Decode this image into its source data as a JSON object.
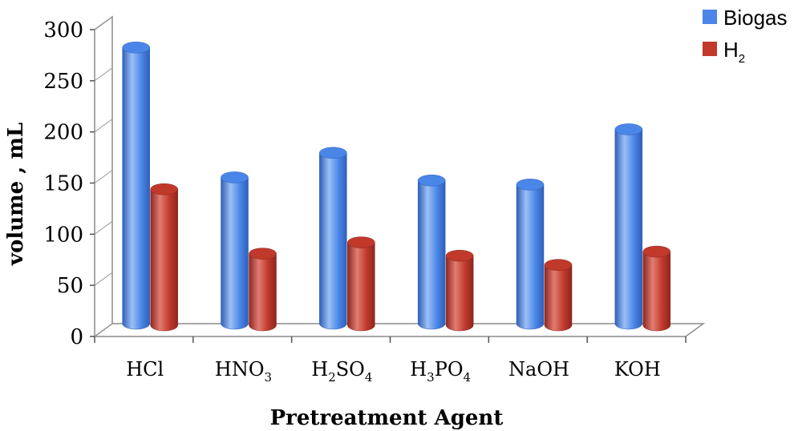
{
  "chart_data": {
    "type": "bar",
    "categories": [
      {
        "base": "HCl",
        "sub": "",
        "parts": [
          {
            "t": "HCl",
            "s": false
          }
        ]
      },
      {
        "base": "HNO3",
        "parts": [
          {
            "t": "HNO",
            "s": false
          },
          {
            "t": "3",
            "s": true
          }
        ]
      },
      {
        "base": "H2SO4",
        "parts": [
          {
            "t": "H",
            "s": false
          },
          {
            "t": "2",
            "s": true
          },
          {
            "t": "SO",
            "s": false
          },
          {
            "t": "4",
            "s": true
          }
        ]
      },
      {
        "base": "H3PO4",
        "parts": [
          {
            "t": "H",
            "s": false
          },
          {
            "t": "3",
            "s": true
          },
          {
            "t": "PO",
            "s": false
          },
          {
            "t": "4",
            "s": true
          }
        ]
      },
      {
        "base": "NaOH",
        "parts": [
          {
            "t": "NaOH",
            "s": false
          }
        ]
      },
      {
        "base": "KOH",
        "parts": [
          {
            "t": "KOH",
            "s": false
          }
        ]
      }
    ],
    "series": [
      {
        "name": "Biogas",
        "name_parts": [
          {
            "t": "Biogas",
            "s": false
          }
        ],
        "color": "#4a86e8",
        "dark": "#2f5fb8",
        "light": "#9cc0f5",
        "values": [
          270,
          143,
          167,
          140,
          136,
          190
        ]
      },
      {
        "name": "H2",
        "name_parts": [
          {
            "t": "H",
            "s": false
          },
          {
            "t": "2",
            "s": true
          }
        ],
        "color": "#c0392b",
        "dark": "#8e2620",
        "light": "#e27d72",
        "values": [
          133,
          70,
          81,
          68,
          59,
          72
        ]
      }
    ],
    "ylim": [
      0,
      300
    ],
    "yticks": [
      0,
      50,
      100,
      150,
      200,
      250,
      300
    ],
    "ylabel": "volume , mL",
    "xlabel": "Pretreatment Agent",
    "legend": "top-right",
    "grid": false,
    "style": "3d-cylinder"
  }
}
